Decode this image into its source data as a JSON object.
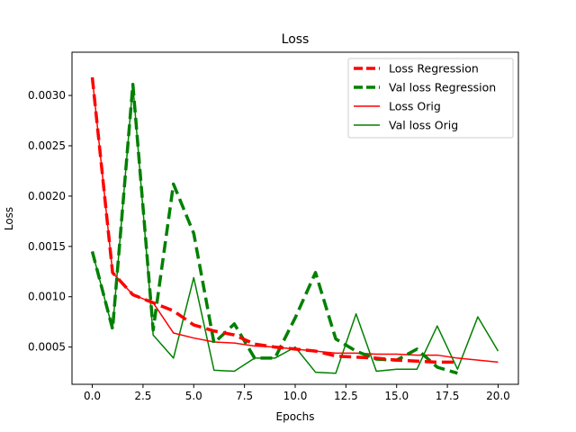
{
  "chart_data": {
    "type": "line",
    "title": "Loss",
    "xlabel": "Epochs",
    "ylabel": "Loss",
    "xlim": [
      -1,
      21
    ],
    "ylim": [
      0.00013,
      0.00343
    ],
    "xticks": [
      0.0,
      2.5,
      5.0,
      7.5,
      10.0,
      12.5,
      15.0,
      17.5,
      20.0
    ],
    "xtick_labels": [
      "0.0",
      "2.5",
      "5.0",
      "7.5",
      "10.0",
      "12.5",
      "15.0",
      "17.5",
      "20.0"
    ],
    "yticks": [
      0.0005,
      0.001,
      0.0015,
      0.002,
      0.0025,
      0.003
    ],
    "ytick_labels": [
      "0.0005",
      "0.0010",
      "0.0015",
      "0.0020",
      "0.0025",
      "0.0030"
    ],
    "grid": false,
    "legend_position": "top-right",
    "series": [
      {
        "name": "Loss Regression",
        "color": "#ff0000",
        "style": "dashed",
        "x": [
          0,
          1,
          2,
          3,
          4,
          5,
          6,
          7,
          8,
          9,
          10,
          11,
          12,
          13,
          14,
          15,
          16,
          17,
          18
        ],
        "y": [
          0.00318,
          0.00124,
          0.00102,
          0.00094,
          0.00086,
          0.00072,
          0.00066,
          0.00062,
          0.00053,
          0.0005,
          0.00048,
          0.00046,
          0.00041,
          0.0004,
          0.00039,
          0.00037,
          0.00036,
          0.00035,
          0.00035
        ]
      },
      {
        "name": "Val loss Regression",
        "color": "#008000",
        "style": "dashed",
        "x": [
          0,
          1,
          2,
          3,
          4,
          5,
          6,
          7,
          8,
          9,
          10,
          11,
          12,
          13,
          14,
          15,
          16,
          17,
          18
        ],
        "y": [
          0.00145,
          0.00068,
          0.00311,
          0.00067,
          0.00212,
          0.00163,
          0.00054,
          0.00073,
          0.00039,
          0.00039,
          0.00079,
          0.00124,
          0.00058,
          0.00046,
          0.00038,
          0.00037,
          0.00048,
          0.0003,
          0.00024
        ]
      },
      {
        "name": "Loss Orig",
        "color": "#ff0000",
        "style": "solid",
        "x": [
          0,
          1,
          2,
          3,
          4,
          5,
          6,
          7,
          8,
          9,
          10,
          11,
          12,
          13,
          14,
          15,
          16,
          17,
          18,
          19,
          20
        ],
        "y": [
          0.00318,
          0.00124,
          0.00102,
          0.00094,
          0.00064,
          0.00059,
          0.00055,
          0.00054,
          0.00051,
          0.0005,
          0.00048,
          0.00046,
          0.00044,
          0.00044,
          0.00043,
          0.00043,
          0.00042,
          0.00042,
          0.00039,
          0.00037,
          0.00035
        ]
      },
      {
        "name": "Val loss Orig",
        "color": "#008000",
        "style": "solid",
        "x": [
          0,
          1,
          2,
          3,
          4,
          5,
          6,
          7,
          8,
          9,
          10,
          11,
          12,
          13,
          14,
          15,
          16,
          17,
          18,
          19,
          20
        ],
        "y": [
          0.00145,
          0.00068,
          0.00311,
          0.00062,
          0.00039,
          0.00119,
          0.00027,
          0.00026,
          0.00039,
          0.00039,
          0.0005,
          0.00025,
          0.00024,
          0.00083,
          0.00026,
          0.00028,
          0.00028,
          0.00071,
          0.00028,
          0.0008,
          0.00046
        ]
      }
    ]
  }
}
